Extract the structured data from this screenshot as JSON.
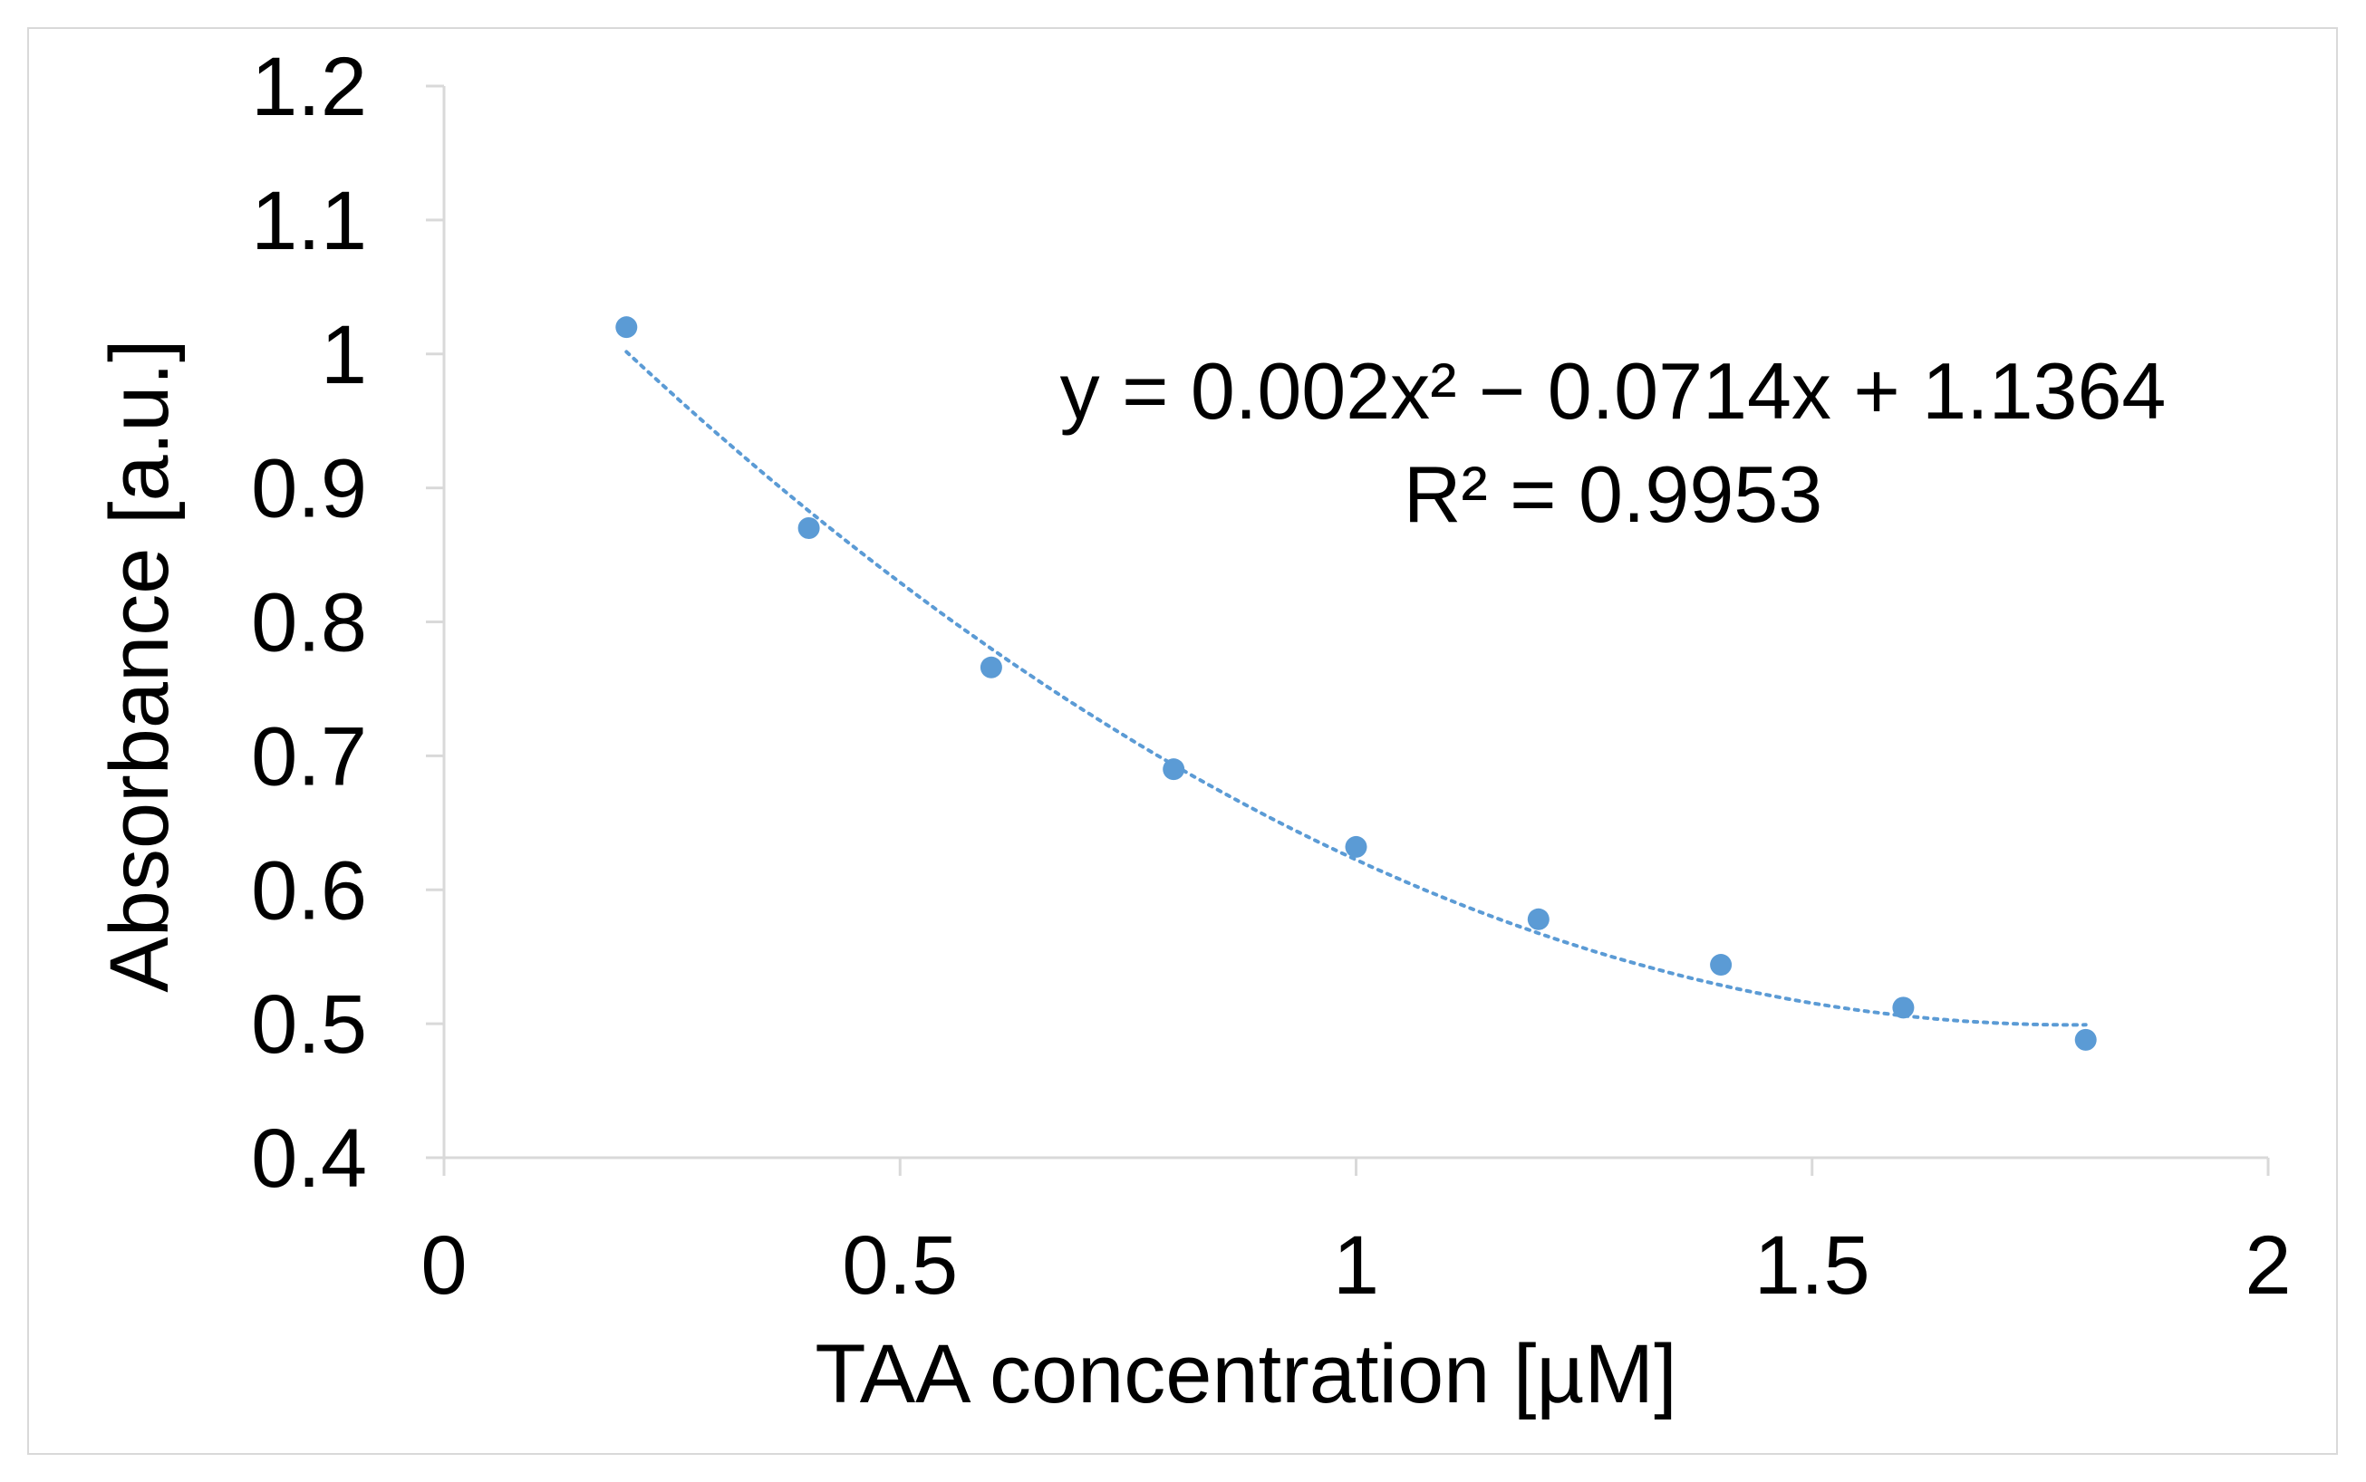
{
  "chart_data": {
    "type": "scatter",
    "title": "",
    "xlabel": "TAA concentration [µM]",
    "ylabel": "Absorbance [a.u.]",
    "xlim": [
      0,
      2
    ],
    "ylim": [
      0.4,
      1.2
    ],
    "xticks": [
      0,
      0.5,
      1,
      1.5,
      2
    ],
    "xtick_labels": [
      "0",
      "0.5",
      "1",
      "1.5",
      "2"
    ],
    "yticks": [
      0.4,
      0.5,
      0.6,
      0.7,
      0.8,
      0.9,
      1.0,
      1.1,
      1.2
    ],
    "ytick_labels": [
      "0.4",
      "0.5",
      "0.6",
      "0.7",
      "0.8",
      "0.9",
      "1",
      "1.1",
      "1.2"
    ],
    "grid": false,
    "series": [
      {
        "name": "Absorbance",
        "color": "#5b9bd5",
        "x": [
          0.2,
          0.4,
          0.6,
          0.8,
          1.0,
          1.2,
          1.4,
          1.6,
          1.8
        ],
        "y": [
          1.02,
          0.87,
          0.766,
          0.69,
          0.632,
          0.578,
          0.544,
          0.512,
          0.488
        ]
      }
    ],
    "trendline": {
      "type": "polynomial",
      "style": "dotted",
      "color": "#5b9bd5",
      "coefficients": [
        0.002,
        -0.0714,
        1.1364
      ],
      "x_units_scale": 10,
      "x_range": [
        0.2,
        1.8
      ],
      "equation_label": "y = 0.002x² − 0.0714x + 1.1364",
      "r2_label": "R² = 0.9953"
    }
  }
}
